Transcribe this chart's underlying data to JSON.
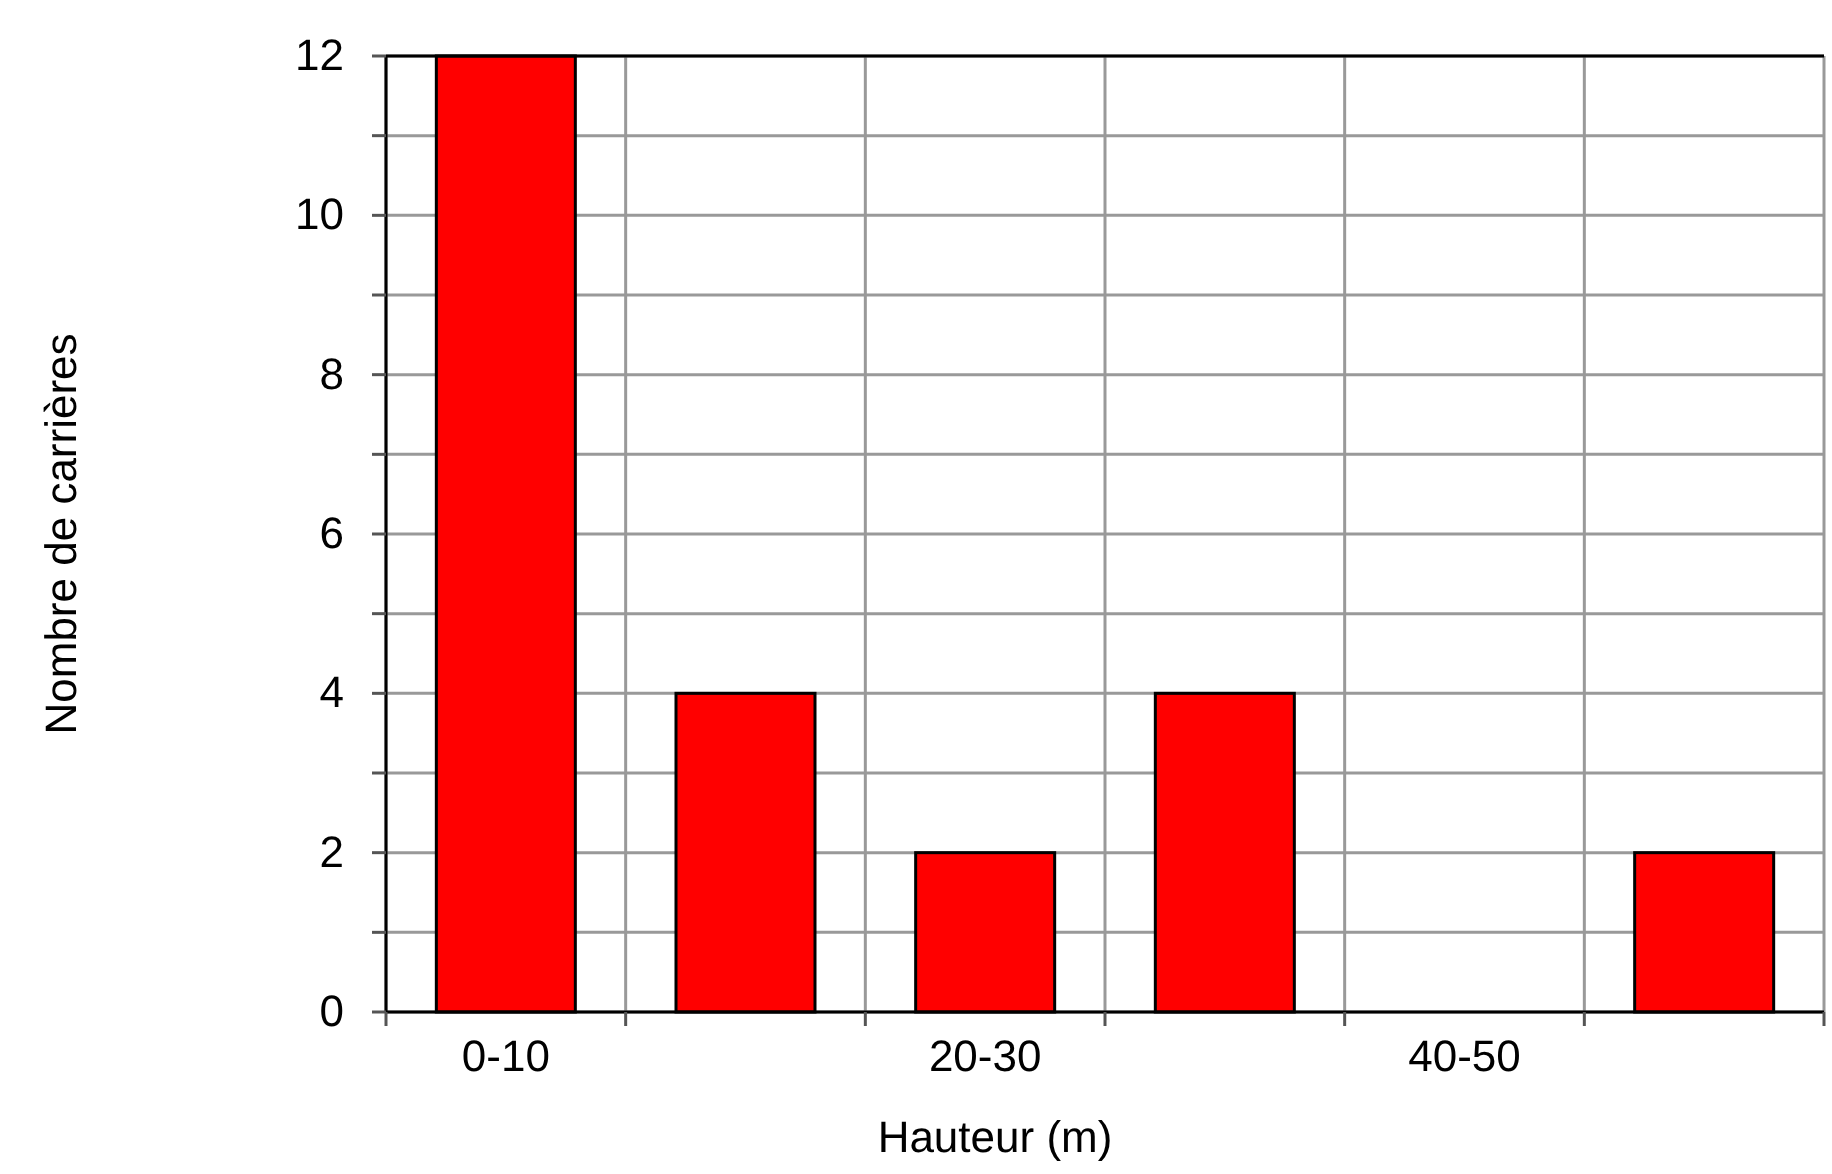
{
  "chart_data": {
    "type": "bar",
    "xlabel": "Hauteur (m)",
    "ylabel": "Nombre de carrières",
    "categories": [
      "0-10",
      null,
      "20-30",
      null,
      "40-50",
      null
    ],
    "series": [
      {
        "color": "#ff0000",
        "values": [
          12,
          4,
          2,
          4,
          0,
          2
        ]
      }
    ],
    "ylim": [
      0,
      12
    ],
    "yticks": [
      0,
      {
        "value": 1,
        "label": null
      },
      2,
      {
        "value": 3,
        "label": null
      },
      4,
      {
        "value": 5,
        "label": null
      },
      6,
      {
        "value": 7,
        "label": null
      },
      8,
      {
        "value": 9,
        "label": null
      },
      10,
      {
        "value": 11,
        "label": null
      },
      12
    ],
    "grid": true
  }
}
